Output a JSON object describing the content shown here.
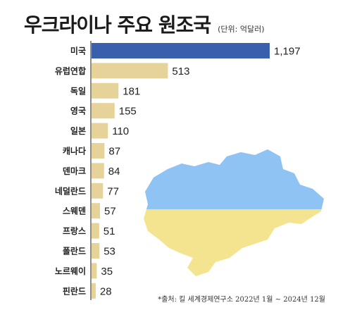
{
  "header": {
    "title": "우크라이나 주요 원조국",
    "unit": "(단위: 억달러)"
  },
  "footer": {
    "source": "*출처: 킬 세계경제연구소 2022년 1월 ~ 2024년 12월"
  },
  "colors": {
    "highlight_bar": "#3a5fad",
    "other_bars": "#e6d39a",
    "axis_line": "#444444",
    "map_blue": "#8ec3f4",
    "map_yellow": "#f5e48f"
  },
  "chart_data": {
    "type": "bar",
    "orientation": "horizontal",
    "title": "우크라이나 주요 원조국",
    "unit": "(단위: 억달러)",
    "categories": [
      "미국",
      "유럽연합",
      "독일",
      "영국",
      "일본",
      "캐나다",
      "덴마크",
      "네덜란드",
      "스웨덴",
      "프랑스",
      "폴란드",
      "노르웨이",
      "핀란드"
    ],
    "values": [
      1197,
      513,
      181,
      155,
      110,
      87,
      84,
      77,
      57,
      51,
      53,
      35,
      28
    ],
    "value_labels": [
      "1,197",
      "513",
      "181",
      "155",
      "110",
      "87",
      "84",
      "77",
      "57",
      "51",
      "53",
      "35",
      "28"
    ],
    "highlight_index": 0,
    "grid": false
  }
}
